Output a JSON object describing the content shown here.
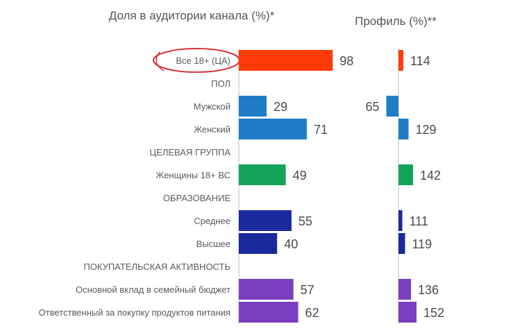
{
  "chart_data": {
    "type": "bar",
    "titles": {
      "share": "Доля в аудитории канала (%)*",
      "profile": "Профиль (%)**"
    },
    "rows": [
      {
        "label": "Все 18+ (ЦА)",
        "kind": "bar",
        "share": 98,
        "profile": 114,
        "color": "#ff3b0a",
        "highlighted": true
      },
      {
        "label": "ПОЛ",
        "kind": "group"
      },
      {
        "label": "Мужской",
        "kind": "bar",
        "share": 29,
        "profile": 65,
        "color": "#1f7cc8"
      },
      {
        "label": "Женский",
        "kind": "bar",
        "share": 71,
        "profile": 129,
        "color": "#1f7cc8"
      },
      {
        "label": "ЦЕЛЕВАЯ ГРУППА",
        "kind": "group"
      },
      {
        "label": "Женщины 18+ ВС",
        "kind": "bar",
        "share": 49,
        "profile": 142,
        "color": "#14a35a"
      },
      {
        "label": "ОБРАЗОВАНИЕ",
        "kind": "group"
      },
      {
        "label": "Среднее",
        "kind": "bar",
        "share": 55,
        "profile": 111,
        "color": "#1a2a9e"
      },
      {
        "label": "Высшее",
        "kind": "bar",
        "share": 40,
        "profile": 119,
        "color": "#1a2a9e"
      },
      {
        "label": "ПОКУПАТЕЛЬСКАЯ АКТИВНОСТЬ",
        "kind": "group"
      },
      {
        "label": "Основной вклад в семейный бюджет",
        "kind": "bar",
        "share": 57,
        "profile": 136,
        "color": "#7a3fc0"
      },
      {
        "label": "Ответственный за покупку продуктов питания",
        "kind": "bar",
        "share": 62,
        "profile": 152,
        "color": "#7a3fc0"
      }
    ],
    "share_axis": {
      "min": 0,
      "max": 100
    },
    "profile_axis": {
      "baseline": 100
    },
    "highlight_color": "#d9313a",
    "axis_color": "#bdbdbd",
    "grid": false,
    "legend": "none"
  }
}
